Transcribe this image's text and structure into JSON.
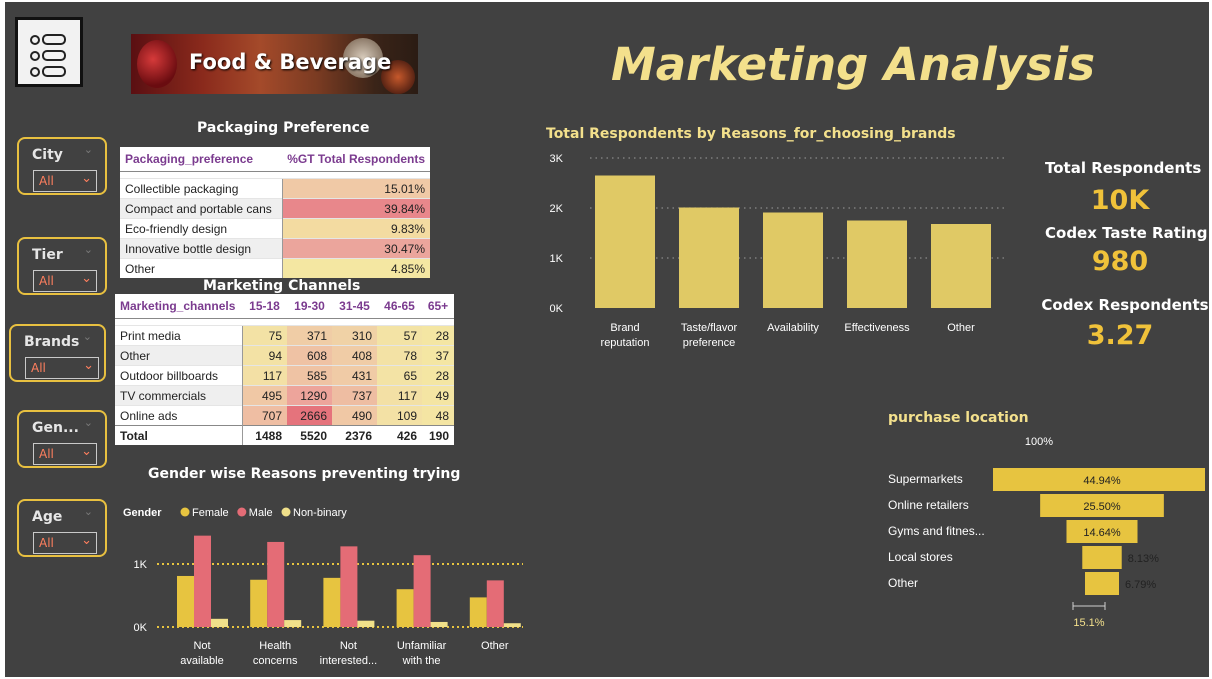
{
  "header": {
    "banner_text": "Food & Beverage",
    "title": "Marketing Analysis"
  },
  "filters": [
    {
      "label": "City",
      "value": "All"
    },
    {
      "label": "Tier",
      "value": "All"
    },
    {
      "label": "Brands",
      "value": "All"
    },
    {
      "label": "Gen...",
      "value": "All"
    },
    {
      "label": "Age",
      "value": "All"
    }
  ],
  "packaging": {
    "title": "Packaging Preference",
    "headers": [
      "Packaging_preference",
      "%GT Total Respondents"
    ],
    "rows": [
      {
        "name": "Collectible packaging",
        "value": "15.01%",
        "color": "#f0c9a6"
      },
      {
        "name": "Compact and portable cans",
        "value": "39.84%",
        "color": "#e8878b"
      },
      {
        "name": "Eco-friendly design",
        "value": "9.83%",
        "color": "#f3dba1"
      },
      {
        "name": "Innovative bottle design",
        "value": "30.47%",
        "color": "#eba59c"
      },
      {
        "name": "Other",
        "value": "4.85%",
        "color": "#f4e7a2"
      }
    ]
  },
  "marketing": {
    "title": "Marketing Channels",
    "headers": [
      "Marketing_channels",
      "15-18",
      "19-30",
      "31-45",
      "46-65",
      "65+"
    ],
    "rows": [
      {
        "name": "Print media",
        "values": [
          "75",
          "371",
          "310",
          "57",
          "28"
        ],
        "colors": [
          "#f3e2a5",
          "#f0cda6",
          "#f0d2a6",
          "#f3e3a5",
          "#f4e6a3"
        ]
      },
      {
        "name": "Other",
        "values": [
          "94",
          "608",
          "408",
          "78",
          "37"
        ],
        "colors": [
          "#f3e2a5",
          "#efc2a4",
          "#f0cca6",
          "#f3e2a5",
          "#f4e6a3"
        ]
      },
      {
        "name": "Outdoor billboards",
        "values": [
          "117",
          "585",
          "431",
          "65",
          "28"
        ],
        "colors": [
          "#f3e0a5",
          "#efc3a4",
          "#f0cba6",
          "#f3e3a5",
          "#f4e6a3"
        ]
      },
      {
        "name": "TV commercials",
        "values": [
          "495",
          "1290",
          "737",
          "117",
          "49"
        ],
        "colors": [
          "#f0c8a5",
          "#eda49b",
          "#eebda2",
          "#f3e0a5",
          "#f4e5a3"
        ]
      },
      {
        "name": "Online ads",
        "values": [
          "707",
          "2666",
          "490",
          "109",
          "48"
        ],
        "colors": [
          "#efbea3",
          "#e5737c",
          "#f0c8a5",
          "#f3e1a5",
          "#f4e5a3"
        ]
      }
    ],
    "total": {
      "name": "Total",
      "values": [
        "1488",
        "5520",
        "2376",
        "426",
        "190"
      ]
    }
  },
  "kpis": [
    {
      "label": "Total Respondents",
      "value": "10K"
    },
    {
      "label": "Codex Taste Rating",
      "value": "980"
    },
    {
      "label": "Codex Respondents",
      "value": "3.27"
    }
  ],
  "chart_data": [
    {
      "type": "bar",
      "title": "Total Respondents by Reasons_for_choosing_brands",
      "categories": [
        "Brand reputation",
        "Taste/flavor preference",
        "Availability",
        "Effectiveness",
        "Other"
      ],
      "values": [
        2650,
        2010,
        1910,
        1750,
        1680
      ],
      "ylim": [
        0,
        3000
      ],
      "yticks": [
        "0K",
        "1K",
        "2K",
        "3K"
      ],
      "grid": true,
      "bar_color": "#e0c965"
    },
    {
      "type": "bar",
      "title": "Gender wise Reasons preventing trying",
      "legend_title": "Gender",
      "categories": [
        "Not available l...",
        "Health concerns",
        "Not interested...",
        "Unfamiliar with the b...",
        "Other"
      ],
      "series": [
        {
          "name": "Female",
          "color": "#e7c440",
          "values": [
            810,
            750,
            780,
            600,
            470
          ]
        },
        {
          "name": "Male",
          "color": "#e46c76",
          "values": [
            1450,
            1350,
            1280,
            1140,
            740
          ]
        },
        {
          "name": "Non-binary",
          "color": "#f0e08a",
          "values": [
            130,
            110,
            100,
            80,
            60
          ]
        }
      ],
      "ylim": [
        0,
        1500
      ],
      "yticks": [
        "0K",
        "1K"
      ],
      "legend": "top-left"
    },
    {
      "type": "bar",
      "title": "purchase location",
      "categories": [
        "Supermarkets",
        "Online retailers",
        "Gyms and fitnes...",
        "Local stores",
        "Other"
      ],
      "values": [
        44.94,
        25.5,
        14.64,
        8.13,
        6.79
      ],
      "labels": [
        "44.94%",
        "25.50%",
        "14.64%",
        "8.13%",
        "6.79%"
      ],
      "top_label": "100%",
      "bottom_label": "15.1%",
      "bar_color": "#e7c440"
    }
  ]
}
